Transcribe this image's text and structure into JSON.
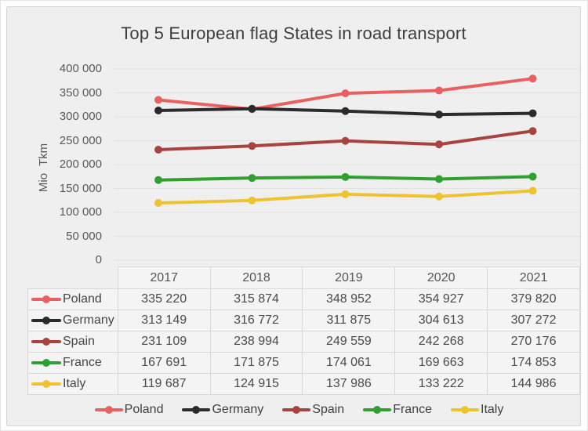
{
  "title": "Top 5 European flag States in road transport",
  "chart_data": {
    "type": "line",
    "title": "Top 5 European flag States in road transport",
    "xlabel": "",
    "ylabel": "Mio Tkm",
    "categories": [
      "2017",
      "2018",
      "2019",
      "2020",
      "2021"
    ],
    "series": [
      {
        "name": "Poland",
        "color": "#e86060",
        "values": [
          335220,
          315874,
          348952,
          354927,
          379820
        ]
      },
      {
        "name": "Germany",
        "color": "#2b2b2b",
        "values": [
          313149,
          316772,
          311875,
          304613,
          307272
        ]
      },
      {
        "name": "Spain",
        "color": "#a84340",
        "values": [
          231109,
          238994,
          249559,
          242268,
          270176
        ]
      },
      {
        "name": "France",
        "color": "#30a030",
        "values": [
          167691,
          171875,
          174061,
          169663,
          174853
        ]
      },
      {
        "name": "Italy",
        "color": "#efc32f",
        "values": [
          119687,
          124915,
          137986,
          133222,
          144986
        ]
      }
    ],
    "ylim": [
      0,
      400000
    ],
    "ytick_step": 50000,
    "ytick_labels": [
      "0",
      "50 000",
      "100 000",
      "150 000",
      "200 000",
      "250 000",
      "300 000",
      "350 000",
      "400 000"
    ],
    "grid": true,
    "legend_position": "bottom",
    "number_format": "space-thousands"
  },
  "table": {
    "row_labels": [
      "Poland",
      "Germany",
      "Spain",
      "France",
      "Italy"
    ],
    "column_headers": [
      "2017",
      "2018",
      "2019",
      "2020",
      "2021"
    ],
    "cells": [
      [
        "335 220",
        "315 874",
        "348 952",
        "354 927",
        "379 820"
      ],
      [
        "313 149",
        "316 772",
        "311 875",
        "304 613",
        "307 272"
      ],
      [
        "231 109",
        "238 994",
        "249 559",
        "242 268",
        "270 176"
      ],
      [
        "167 691",
        "171 875",
        "174 061",
        "169 663",
        "174 853"
      ],
      [
        "119 687",
        "124 915",
        "137 986",
        "133 222",
        "144 986"
      ]
    ]
  },
  "legend_labels": [
    "Poland",
    "Germany",
    "Spain",
    "France",
    "Italy"
  ],
  "colors": {
    "page_background": "#ffffff",
    "panel_background": "#efefef",
    "panel_border": "#d5d5d5",
    "gridline": "#e2e2e2",
    "table_border": "#d9d9d9",
    "table_cell_background": "#f4f4f4",
    "title_text": "#3d3d3d",
    "axis_text": "#595959",
    "cell_text": "#4a4a4a"
  }
}
